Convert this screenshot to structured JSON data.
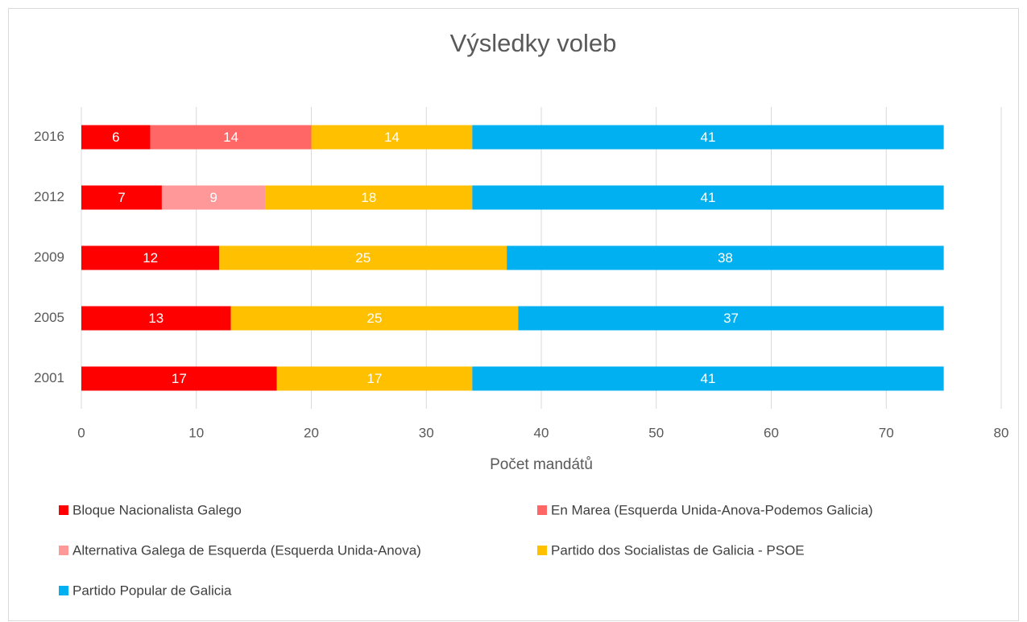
{
  "chart_data": {
    "type": "stacked-bar-horizontal",
    "title": "Výsledky voleb",
    "categories": [
      "2016",
      "2012",
      "2009",
      "2005",
      "2001"
    ],
    "series": [
      {
        "name": "Bloque Nacionalista Galego",
        "color": "#ff0000",
        "values": [
          6,
          7,
          12,
          13,
          17
        ]
      },
      {
        "name": "En Marea (Esquerda Unida-Anova-Podemos Galicia)",
        "color": "#ff6666",
        "values": [
          14,
          null,
          null,
          null,
          null
        ]
      },
      {
        "name": "Alternativa Galega de Esquerda (Esquerda Unida-Anova)",
        "color": "#ff9999",
        "values": [
          null,
          9,
          null,
          null,
          null
        ]
      },
      {
        "name": "Partido dos Socialistas de Galicia - PSOE",
        "color": "#ffc000",
        "values": [
          14,
          18,
          25,
          25,
          17
        ]
      },
      {
        "name": "Partido Popular de Galicia",
        "color": "#00b0f0",
        "values": [
          41,
          41,
          38,
          37,
          41
        ]
      }
    ],
    "xlabel": "Počet mandátů",
    "xlim": [
      0,
      80
    ],
    "xticks": [
      0,
      10,
      20,
      30,
      40,
      50,
      60,
      70,
      80
    ],
    "grid": true,
    "legend": "bottom"
  }
}
